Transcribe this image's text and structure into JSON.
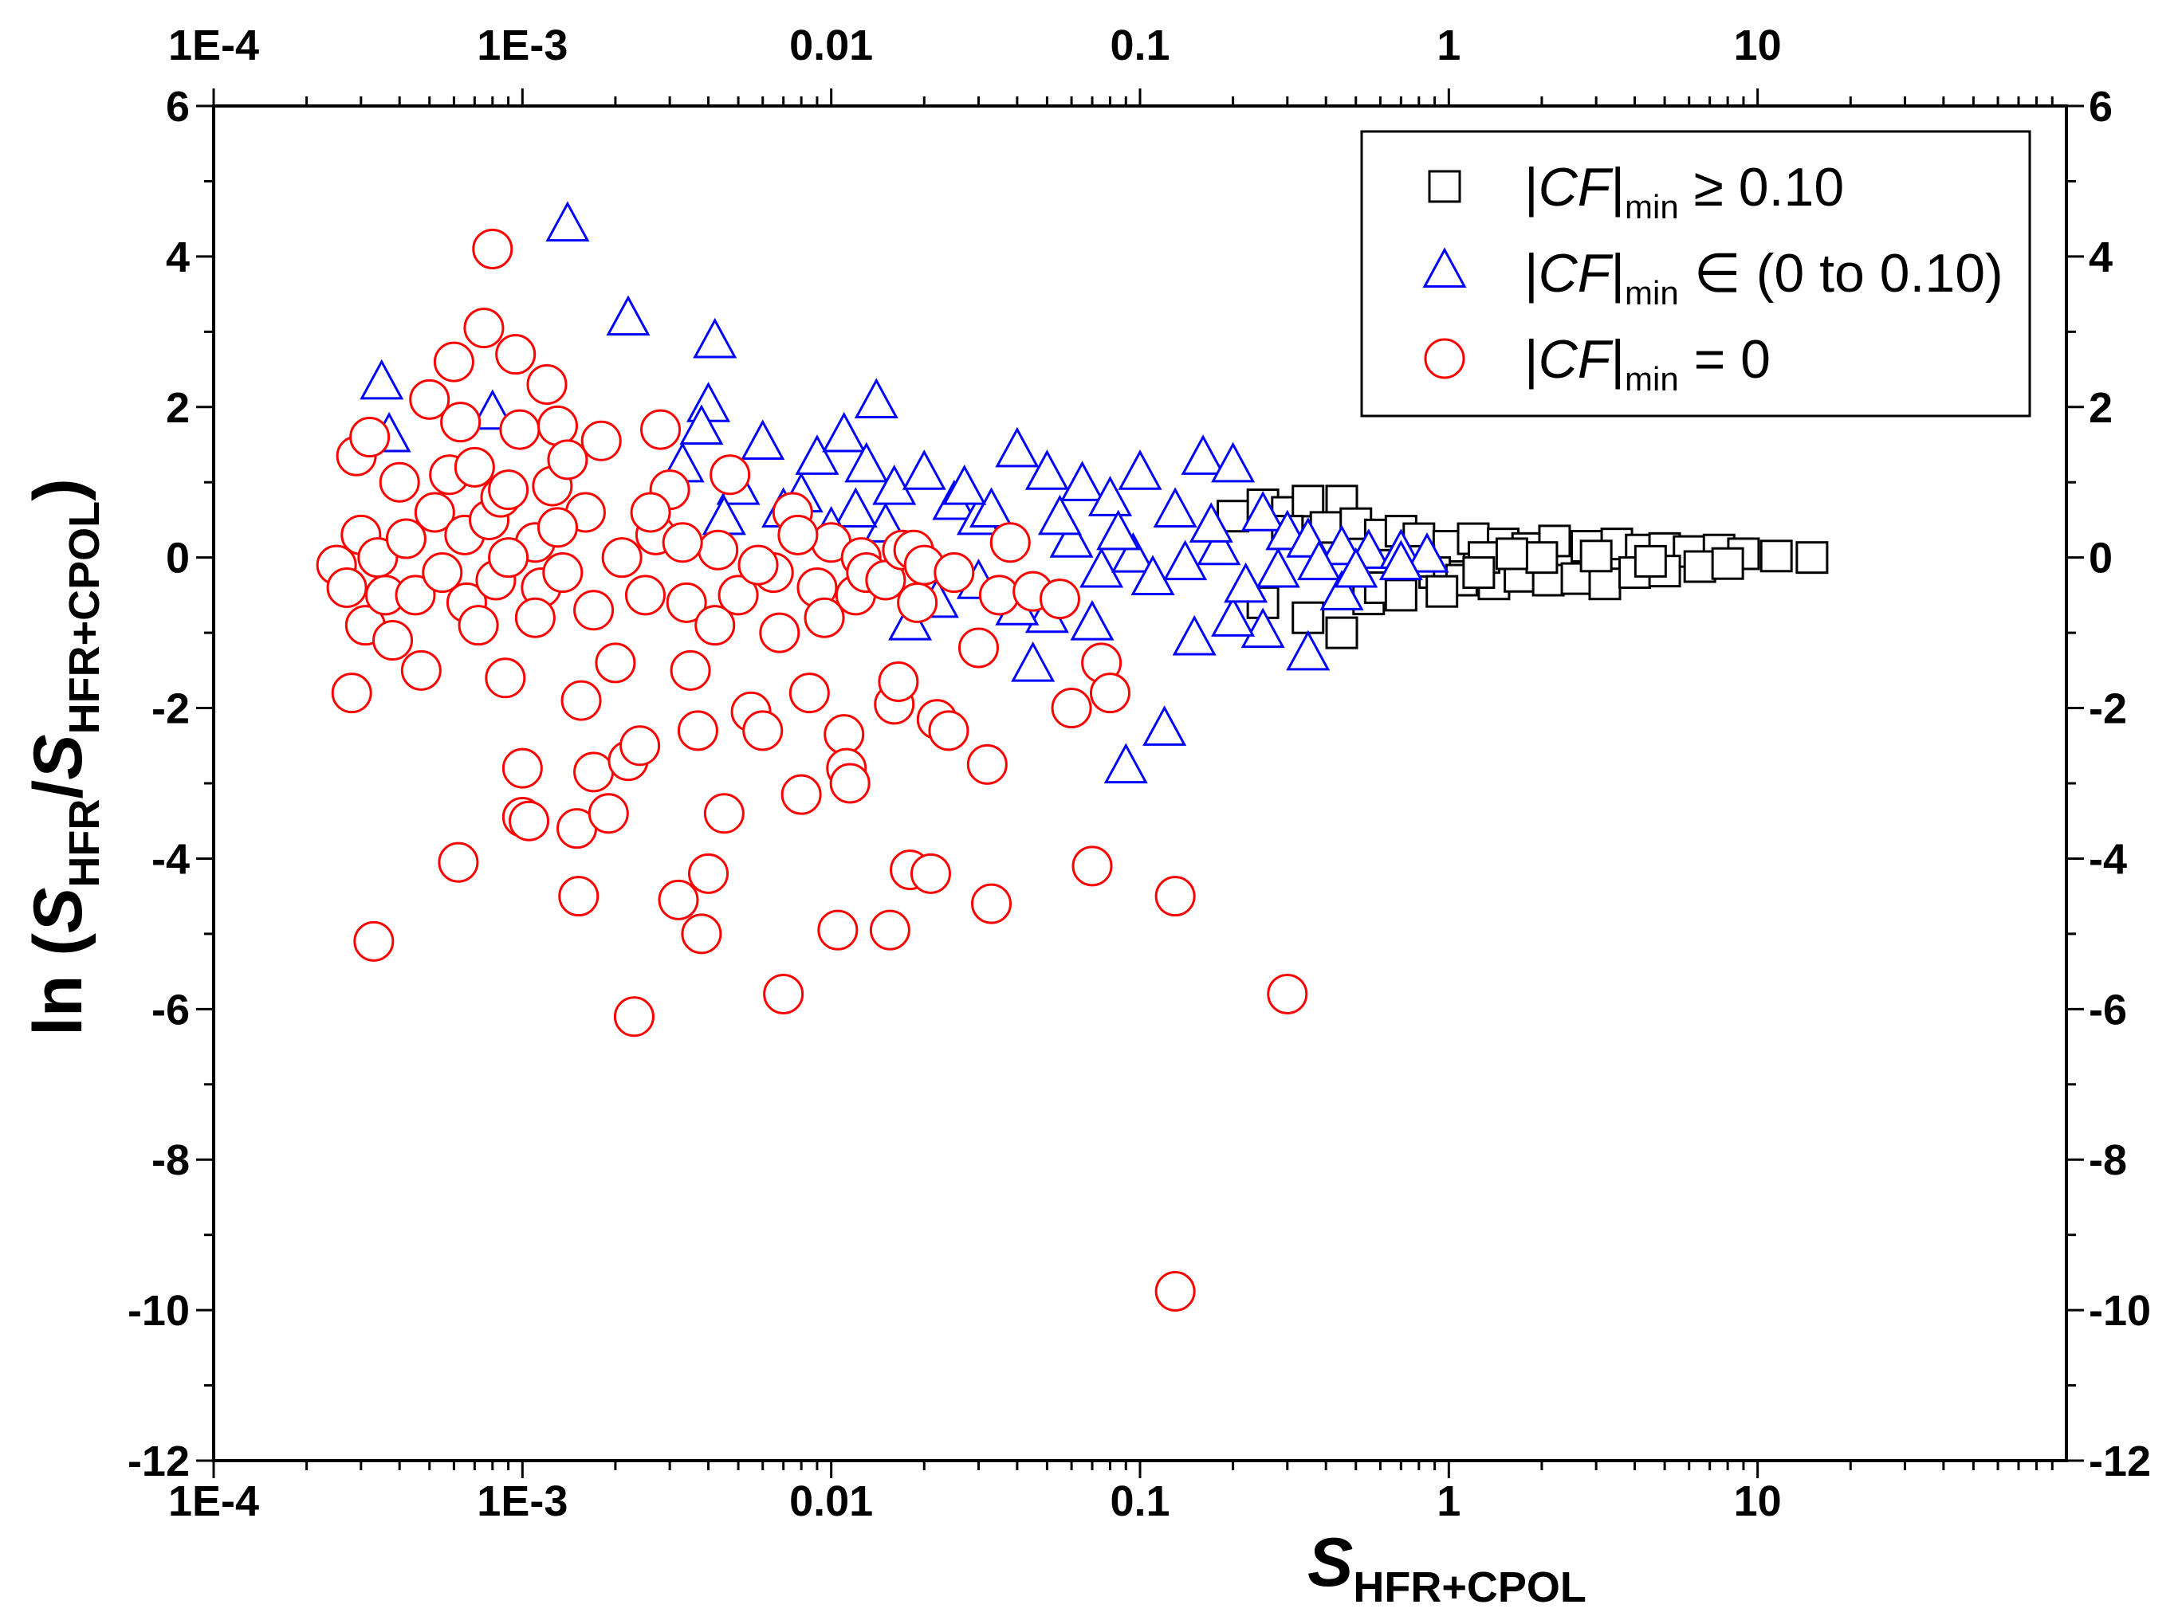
{
  "chart_data": {
    "type": "scatter",
    "x_scale": "log",
    "xlim": [
      0.0001,
      100
    ],
    "ylim": [
      -12,
      6
    ],
    "x_ticks": [
      0.0001,
      0.001,
      0.01,
      0.1,
      1,
      10
    ],
    "x_tick_labels": [
      "1E-4",
      "1E-3",
      "0.01",
      "0.1",
      "1",
      "10"
    ],
    "y_ticks": [
      6,
      4,
      2,
      0,
      -2,
      -4,
      -6,
      -8,
      -10,
      -12
    ],
    "y_tick_labels": [
      "6",
      "4",
      "2",
      "0",
      "-2",
      "-4",
      "-6",
      "-8",
      "-10",
      "-12"
    ],
    "xlabel": {
      "main": "S",
      "sub": "HFR+CPOL"
    },
    "ylabel": {
      "prefix": "ln (",
      "s1": "S",
      "sub1": "HFR",
      "slash": "/",
      "s2": "S",
      "sub2": "HFR+CPOL",
      "suffix": ")"
    },
    "legend_position": "top-right",
    "legend": [
      {
        "pre": "|",
        "cf": "CF",
        "bar": "|",
        "sub": "min",
        "rest": " ≥ 0.10",
        "color": "#000000",
        "marker": "square"
      },
      {
        "pre": "|",
        "cf": "CF",
        "bar": "|",
        "sub": "min",
        "rest": " ∈ (0 to 0.10)",
        "color": "#0000ff",
        "marker": "triangle"
      },
      {
        "pre": "|",
        "cf": "CF",
        "bar": "|",
        "sub": "min",
        "rest": " = 0",
        "color": "#ff0000",
        "marker": "circle"
      }
    ],
    "series": [
      {
        "name": "|CF|min ≥ 0.10",
        "marker": "square",
        "color": "#000000",
        "points": [
          [
            0.2,
            0.55
          ],
          [
            0.25,
            0.7
          ],
          [
            0.3,
            0.6
          ],
          [
            0.35,
            0.75
          ],
          [
            0.45,
            0.75
          ],
          [
            0.3,
            0.35
          ],
          [
            0.4,
            0.4
          ],
          [
            0.5,
            0.45
          ],
          [
            0.6,
            0.3
          ],
          [
            0.7,
            0.35
          ],
          [
            0.25,
            -0.6
          ],
          [
            0.35,
            -0.8
          ],
          [
            0.45,
            -1.0
          ],
          [
            0.55,
            -0.55
          ],
          [
            0.6,
            -0.4
          ],
          [
            0.8,
            0.25
          ],
          [
            1.0,
            0.15
          ],
          [
            1.2,
            0.25
          ],
          [
            1.5,
            0.18
          ],
          [
            1.8,
            0.12
          ],
          [
            2.2,
            0.22
          ],
          [
            2.8,
            0.15
          ],
          [
            3.5,
            0.18
          ],
          [
            4.2,
            0.1
          ],
          [
            5.0,
            0.12
          ],
          [
            6.0,
            0.08
          ],
          [
            7.5,
            0.1
          ],
          [
            9.0,
            0.05
          ],
          [
            11.5,
            0.02
          ],
          [
            15.0,
            0.0
          ],
          [
            0.9,
            -0.2
          ],
          [
            1.1,
            -0.3
          ],
          [
            1.4,
            -0.35
          ],
          [
            1.7,
            -0.25
          ],
          [
            2.1,
            -0.3
          ],
          [
            2.6,
            -0.28
          ],
          [
            3.2,
            -0.35
          ],
          [
            4.0,
            -0.2
          ],
          [
            5.0,
            -0.18
          ],
          [
            6.5,
            -0.12
          ],
          [
            8.0,
            -0.08
          ],
          [
            0.8,
            -0.05
          ],
          [
            1.3,
            0.0
          ],
          [
            2.0,
            0.0
          ],
          [
            3.0,
            0.02
          ],
          [
            4.5,
            -0.05
          ],
          [
            0.7,
            -0.5
          ],
          [
            0.95,
            -0.45
          ],
          [
            1.25,
            -0.2
          ],
          [
            1.6,
            0.05
          ]
        ]
      },
      {
        "name": "|CF|min ∈ (0 to 0.10)",
        "marker": "triangle",
        "color": "#0000ff",
        "points": [
          [
            0.00035,
            2.3
          ],
          [
            0.00037,
            1.6
          ],
          [
            0.0008,
            1.9
          ],
          [
            0.0014,
            4.4
          ],
          [
            0.0022,
            3.15
          ],
          [
            0.0042,
            2.85
          ],
          [
            0.004,
            2.0
          ],
          [
            0.0038,
            1.7
          ],
          [
            0.0033,
            1.2
          ],
          [
            0.006,
            1.5
          ],
          [
            0.009,
            1.3
          ],
          [
            0.011,
            1.6
          ],
          [
            0.013,
            1.2
          ],
          [
            0.014,
            2.05
          ],
          [
            0.016,
            0.9
          ],
          [
            0.02,
            1.1
          ],
          [
            0.025,
            0.7
          ],
          [
            0.03,
            0.5
          ],
          [
            0.04,
            1.4
          ],
          [
            0.05,
            1.1
          ],
          [
            0.065,
            0.95
          ],
          [
            0.08,
            0.75
          ],
          [
            0.1,
            1.1
          ],
          [
            0.13,
            0.6
          ],
          [
            0.16,
            1.3
          ],
          [
            0.2,
            1.2
          ],
          [
            0.25,
            0.55
          ],
          [
            0.3,
            0.3
          ],
          [
            0.35,
            0.2
          ],
          [
            0.45,
            0.1
          ],
          [
            0.55,
            0.05
          ],
          [
            0.7,
            0.05
          ],
          [
            0.85,
            0.0
          ],
          [
            0.7,
            -0.1
          ],
          [
            0.45,
            -0.5
          ],
          [
            0.35,
            -1.3
          ],
          [
            0.25,
            -1.0
          ],
          [
            0.2,
            -0.85
          ],
          [
            0.15,
            -1.1
          ],
          [
            0.12,
            -2.3
          ],
          [
            0.09,
            -2.8
          ],
          [
            0.07,
            -0.9
          ],
          [
            0.05,
            -0.8
          ],
          [
            0.045,
            -1.45
          ],
          [
            0.04,
            -0.7
          ],
          [
            0.03,
            -0.35
          ],
          [
            0.022,
            -0.6
          ],
          [
            0.018,
            -0.9
          ],
          [
            0.015,
            0.4
          ],
          [
            0.012,
            0.6
          ],
          [
            0.01,
            0.35
          ],
          [
            0.008,
            0.8
          ],
          [
            0.007,
            0.6
          ],
          [
            0.005,
            0.9
          ],
          [
            0.0045,
            0.5
          ],
          [
            0.06,
            0.2
          ],
          [
            0.075,
            -0.2
          ],
          [
            0.095,
            0.0
          ],
          [
            0.11,
            -0.3
          ],
          [
            0.14,
            -0.1
          ],
          [
            0.18,
            0.1
          ],
          [
            0.22,
            -0.4
          ],
          [
            0.28,
            -0.2
          ],
          [
            0.38,
            -0.1
          ],
          [
            0.5,
            -0.2
          ],
          [
            0.033,
            0.6
          ],
          [
            0.027,
            0.9
          ],
          [
            0.055,
            0.5
          ],
          [
            0.085,
            0.3
          ],
          [
            0.17,
            0.4
          ]
        ]
      },
      {
        "name": "|CF|min = 0",
        "marker": "circle",
        "color": "#ff0000",
        "points": [
          [
            0.00025,
            -0.1
          ],
          [
            0.00027,
            -0.4
          ],
          [
            0.00028,
            -1.8
          ],
          [
            0.00029,
            1.35
          ],
          [
            0.0003,
            0.3
          ],
          [
            0.00031,
            -0.9
          ],
          [
            0.00032,
            1.6
          ],
          [
            0.00033,
            -5.1
          ],
          [
            0.00034,
            0.0
          ],
          [
            0.00036,
            -0.5
          ],
          [
            0.00038,
            -1.1
          ],
          [
            0.0004,
            1.0
          ],
          [
            0.00042,
            0.25
          ],
          [
            0.00045,
            -0.5
          ],
          [
            0.00047,
            -1.5
          ],
          [
            0.0005,
            2.1
          ],
          [
            0.00052,
            0.6
          ],
          [
            0.00055,
            -0.2
          ],
          [
            0.00058,
            1.1
          ],
          [
            0.0006,
            2.6
          ],
          [
            0.00062,
            -4.05
          ],
          [
            0.00063,
            1.8
          ],
          [
            0.00065,
            0.3
          ],
          [
            0.00066,
            -0.6
          ],
          [
            0.0007,
            1.2
          ],
          [
            0.00072,
            -0.9
          ],
          [
            0.00075,
            3.05
          ],
          [
            0.00078,
            0.5
          ],
          [
            0.0008,
            4.1
          ],
          [
            0.00082,
            -0.3
          ],
          [
            0.00085,
            0.8
          ],
          [
            0.00088,
            -1.6
          ],
          [
            0.0009,
            0.9
          ],
          [
            0.00095,
            2.7
          ],
          [
            0.00098,
            1.7
          ],
          [
            0.001,
            -2.8
          ],
          [
            0.001,
            -3.45
          ],
          [
            0.00105,
            -3.5
          ],
          [
            0.0011,
            0.2
          ],
          [
            0.00115,
            -0.4
          ],
          [
            0.0012,
            2.3
          ],
          [
            0.00125,
            0.95
          ],
          [
            0.0013,
            1.75
          ],
          [
            0.00135,
            -0.2
          ],
          [
            0.0014,
            1.3
          ],
          [
            0.0015,
            -3.6
          ],
          [
            0.00152,
            -4.5
          ],
          [
            0.00155,
            -1.9
          ],
          [
            0.0016,
            0.6
          ],
          [
            0.0017,
            -2.85
          ],
          [
            0.0018,
            1.55
          ],
          [
            0.0019,
            -3.4
          ],
          [
            0.002,
            -1.4
          ],
          [
            0.0021,
            0.0
          ],
          [
            0.0022,
            -2.7
          ],
          [
            0.0023,
            -6.1
          ],
          [
            0.0024,
            -2.5
          ],
          [
            0.0025,
            -0.5
          ],
          [
            0.0027,
            0.3
          ],
          [
            0.0028,
            1.7
          ],
          [
            0.003,
            0.9
          ],
          [
            0.0032,
            -4.55
          ],
          [
            0.0034,
            -0.6
          ],
          [
            0.0035,
            -1.5
          ],
          [
            0.0037,
            -2.3
          ],
          [
            0.0038,
            -5.0
          ],
          [
            0.004,
            -4.2
          ],
          [
            0.0043,
            0.1
          ],
          [
            0.0045,
            -3.4
          ],
          [
            0.0047,
            1.1
          ],
          [
            0.005,
            -0.5
          ],
          [
            0.0055,
            -2.05
          ],
          [
            0.006,
            -2.3
          ],
          [
            0.0065,
            -0.2
          ],
          [
            0.007,
            -5.8
          ],
          [
            0.0075,
            0.6
          ],
          [
            0.008,
            -3.15
          ],
          [
            0.0085,
            -1.8
          ],
          [
            0.009,
            -0.4
          ],
          [
            0.0095,
            -0.8
          ],
          [
            0.01,
            0.2
          ],
          [
            0.0105,
            -4.95
          ],
          [
            0.011,
            -2.35
          ],
          [
            0.0112,
            -2.8
          ],
          [
            0.0115,
            -3.0
          ],
          [
            0.012,
            -0.5
          ],
          [
            0.0125,
            0.0
          ],
          [
            0.013,
            -0.2
          ],
          [
            0.015,
            -0.3
          ],
          [
            0.0155,
            -4.95
          ],
          [
            0.016,
            -1.95
          ],
          [
            0.0165,
            -1.65
          ],
          [
            0.017,
            0.1
          ],
          [
            0.018,
            -4.15
          ],
          [
            0.0185,
            0.1
          ],
          [
            0.019,
            -0.6
          ],
          [
            0.02,
            -0.1
          ],
          [
            0.021,
            -4.2
          ],
          [
            0.022,
            -2.15
          ],
          [
            0.024,
            -2.3
          ],
          [
            0.025,
            -0.2
          ],
          [
            0.03,
            -1.2
          ],
          [
            0.032,
            -2.75
          ],
          [
            0.033,
            -4.6
          ],
          [
            0.035,
            -0.5
          ],
          [
            0.038,
            0.2
          ],
          [
            0.045,
            -0.45
          ],
          [
            0.055,
            -0.55
          ],
          [
            0.06,
            -2.0
          ],
          [
            0.07,
            -4.1
          ],
          [
            0.075,
            -1.4
          ],
          [
            0.08,
            -1.8
          ],
          [
            0.13,
            -4.5
          ],
          [
            0.13,
            -9.75
          ],
          [
            0.3,
            -5.8
          ],
          [
            0.0009,
            0.0
          ],
          [
            0.0011,
            -0.8
          ],
          [
            0.0013,
            0.4
          ],
          [
            0.0017,
            -0.7
          ],
          [
            0.0026,
            0.6
          ],
          [
            0.0033,
            0.2
          ],
          [
            0.0042,
            -0.9
          ],
          [
            0.0058,
            -0.1
          ],
          [
            0.0068,
            -1.0
          ],
          [
            0.0078,
            0.3
          ]
        ]
      }
    ]
  }
}
